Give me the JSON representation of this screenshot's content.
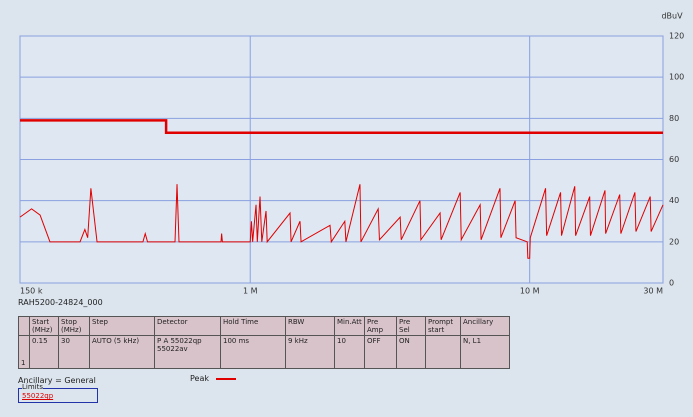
{
  "chart_data": {
    "type": "line",
    "unit_label": "dBuV",
    "xscale": "log",
    "xlim": [
      0.15,
      30
    ],
    "xticks": [
      {
        "value": 0.15,
        "label": "150 k"
      },
      {
        "value": 1,
        "label": "1 M"
      },
      {
        "value": 10,
        "label": "10 M"
      },
      {
        "value": 30,
        "label": "30 M"
      }
    ],
    "ylim": [
      0,
      120
    ],
    "yticks": [
      0,
      20,
      40,
      60,
      80,
      100,
      120
    ],
    "grid": true,
    "series": [
      {
        "name": "Peak",
        "color": "#e00000",
        "x": [
          0.15,
          0.165,
          0.177,
          0.192,
          0.246,
          0.256,
          0.262,
          0.269,
          0.283,
          0.413,
          0.421,
          0.429,
          0.538,
          0.547,
          0.556,
          0.786,
          0.79,
          0.795,
          1.0,
          1.01,
          1.02,
          1.049,
          1.06,
          1.084,
          1.1,
          1.139,
          1.15,
          1.388,
          1.4,
          1.507,
          1.52,
          1.93,
          1.95,
          2.18,
          2.2,
          2.47,
          2.49,
          2.87,
          2.9,
          3.44,
          3.47,
          4.05,
          4.08,
          4.78,
          4.82,
          5.64,
          5.69,
          6.65,
          6.7,
          7.83,
          7.89,
          8.87,
          8.94,
          9.8,
          9.85,
          10.0,
          10.05,
          11.4,
          11.5,
          12.9,
          13.0,
          14.5,
          14.6,
          16.4,
          16.5,
          18.6,
          18.7,
          21.0,
          21.2,
          23.8,
          24.0,
          27.0,
          27.2,
          30.0
        ],
        "values": [
          32,
          36,
          33,
          20,
          20,
          26,
          22,
          46,
          20,
          20,
          24,
          20,
          20,
          48,
          20,
          20,
          24,
          20,
          20,
          30,
          20,
          38,
          20,
          42,
          20,
          35,
          20,
          34,
          20,
          30,
          20,
          28,
          20,
          30,
          20,
          48,
          20,
          36,
          21,
          32,
          21,
          40,
          21,
          34,
          21,
          44,
          21,
          38,
          21,
          46,
          22,
          40,
          22,
          20,
          12,
          12,
          22,
          46,
          23,
          44,
          23,
          47,
          23,
          42,
          23,
          45,
          24,
          43,
          24,
          44,
          25,
          42,
          25,
          38
        ]
      }
    ],
    "limit_line": {
      "name": "55022qp",
      "color": "#e00000",
      "x": [
        0.15,
        0.5,
        0.5,
        30
      ],
      "values": [
        79,
        79,
        73,
        73
      ]
    }
  },
  "scan_name": "RAH5200-24824_000",
  "table": {
    "headers": [
      "Start (MHz)",
      "Stop (MHz)",
      "Step",
      "Detector",
      "Hold Time",
      "RBW",
      "Min.Att",
      "Pre Amp",
      "Pre Sel",
      "Prompt start",
      "Ancillary"
    ],
    "rows": [
      [
        "1",
        "0.15",
        "30",
        "AUTO (5 kHz)",
        "P A 55022qp 55022av",
        "100 ms",
        "9 kHz",
        "10",
        "OFF",
        "ON",
        "N, L1"
      ]
    ]
  },
  "ancillary": "Ancillary = General",
  "limits_title": "Limits"
}
